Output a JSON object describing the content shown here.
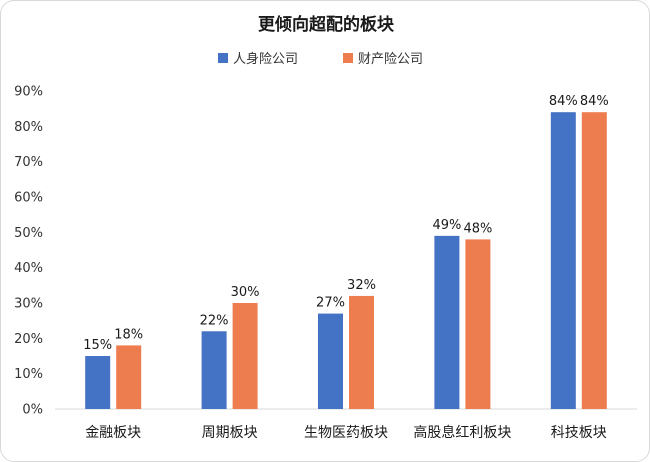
{
  "chart_data": {
    "type": "bar",
    "title": "更倾向超配的板块",
    "categories": [
      "金融板块",
      "周期板块",
      "生物医药板块",
      "高股息红利板块",
      "科技板块"
    ],
    "series": [
      {
        "name": "人身险公司",
        "values": [
          15,
          22,
          27,
          49,
          84
        ],
        "labels": [
          "15%",
          "22%",
          "27%",
          "49%",
          "84%"
        ],
        "color": "#4472C4"
      },
      {
        "name": "财产险公司",
        "values": [
          18,
          30,
          32,
          48,
          84
        ],
        "labels": [
          "18%",
          "30%",
          "32%",
          "48%",
          "84%"
        ],
        "color": "#ED7D4F"
      }
    ],
    "y_ticks": [
      "0%",
      "10%",
      "20%",
      "30%",
      "40%",
      "50%",
      "60%",
      "70%",
      "80%",
      "90%"
    ],
    "ylim": [
      0,
      90
    ],
    "legend_position": "top-center",
    "grid": false
  }
}
